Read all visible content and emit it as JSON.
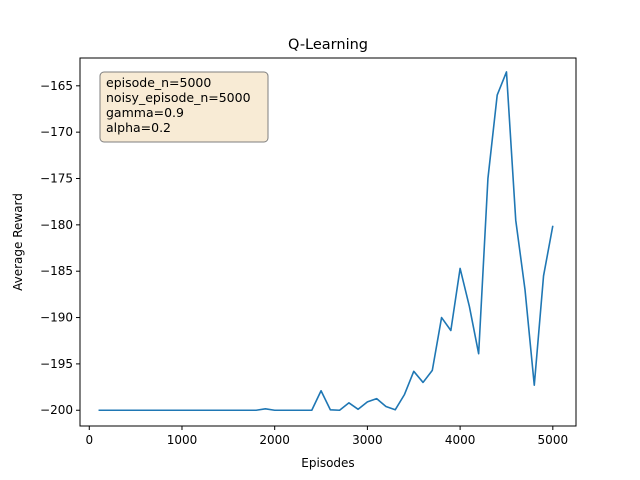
{
  "chart_data": {
    "type": "line",
    "title": "Q-Learning",
    "xlabel": "Episodes",
    "ylabel": "Average Reward",
    "xlim": [
      -100,
      5250
    ],
    "ylim": [
      -201.7,
      -162.0
    ],
    "xticks": [
      0,
      1000,
      2000,
      3000,
      4000,
      5000
    ],
    "yticks": [
      -200,
      -195,
      -190,
      -185,
      -180,
      -175,
      -170,
      -165
    ],
    "xtick_labels": [
      "0",
      "1000",
      "2000",
      "3000",
      "4000",
      "5000"
    ],
    "ytick_labels": [
      "−200",
      "−195",
      "−190",
      "−185",
      "−180",
      "−175",
      "−170",
      "−165"
    ],
    "grid": false,
    "line_color": "#1f77b4",
    "annotation": {
      "lines": [
        "episode_n=5000",
        "noisy_episode_n=5000",
        "gamma=0.9",
        "alpha=0.2"
      ],
      "placement": "top-left",
      "box_color": "#f8ebd5",
      "border_color": "#7f7f7f"
    },
    "series": [
      {
        "x": [
          100,
          200,
          300,
          400,
          500,
          600,
          700,
          800,
          900,
          1000,
          1100,
          1200,
          1300,
          1400,
          1500,
          1600,
          1700,
          1800,
          1900,
          2000,
          2100,
          2200,
          2300,
          2400,
          2500,
          2600,
          2700,
          2800,
          2900,
          3000,
          3100,
          3200,
          3300,
          3400,
          3500,
          3600,
          3700,
          3800,
          3900,
          4000,
          4100,
          4200,
          4300,
          4400,
          4500,
          4600,
          4700,
          4800,
          4900,
          5000
        ],
        "y": [
          -200,
          -200,
          -200,
          -200,
          -200,
          -200,
          -200,
          -200,
          -200,
          -200,
          -200,
          -200,
          -200,
          -200,
          -200,
          -200,
          -200,
          -200,
          -199.85,
          -200,
          -200,
          -200,
          -200,
          -200,
          -197.9,
          -199.95,
          -200,
          -199.2,
          -199.9,
          -199.1,
          -198.75,
          -199.6,
          -199.95,
          -198.3,
          -195.8,
          -197.0,
          -195.7,
          -190.0,
          -191.4,
          -184.7,
          -188.8,
          -193.9,
          -175.0,
          -166.0,
          -163.5,
          -179.5,
          -187.0,
          -197.3,
          -185.5,
          -180.1
        ]
      }
    ]
  }
}
